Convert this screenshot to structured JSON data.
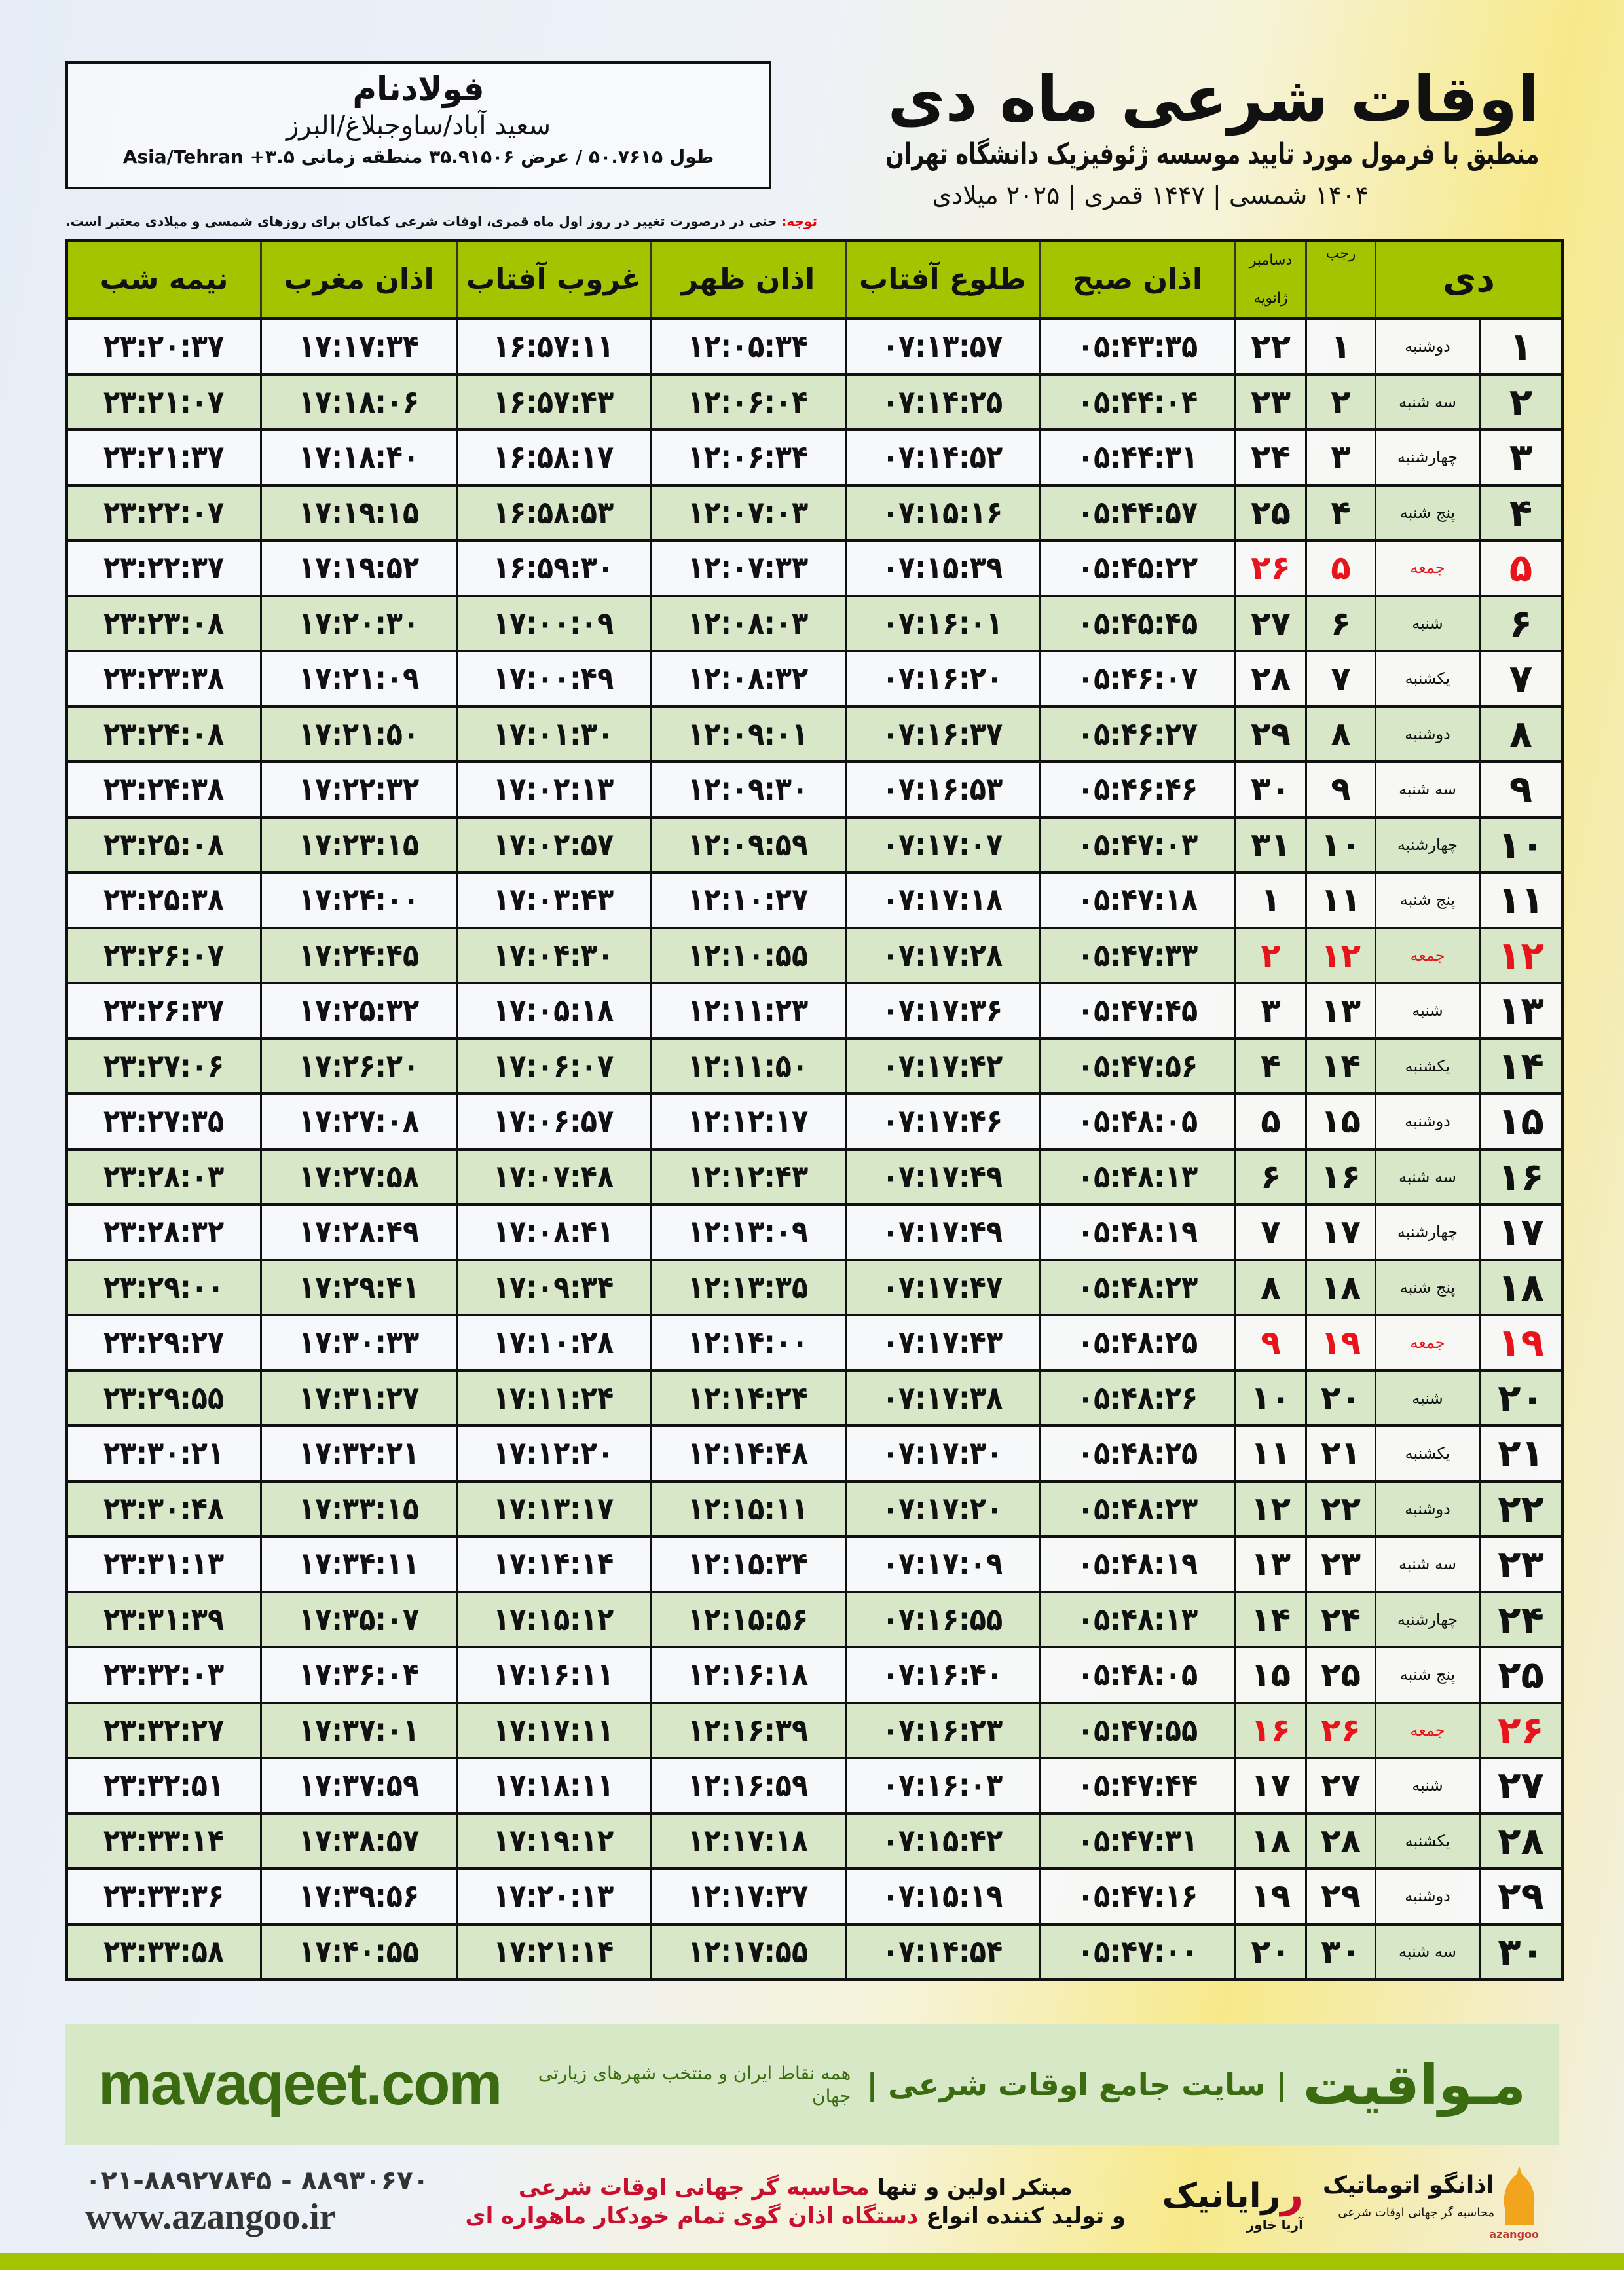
{
  "header": {
    "title": "اوقات شرعی ماه دی",
    "subtitle": "منطبق با فرمول مورد تایید موسسه ژئوفیزیک دانشگاه تهران",
    "dates": "۱۴۰۴ شمسی | ۱۴۴۷ قمری | ۲۰۲۵ میلادی"
  },
  "location": {
    "city": "فولادنام",
    "region": "سعید آباد/ساوجبلاغ/البرز",
    "coords": "طول ۵۰.۷۶۱۵ / عرض ۳۵.۹۱۵۰۶ منطقه زمانی ۳.۵+ Asia/Tehran"
  },
  "note": {
    "label": "توجه:",
    "text": " حتی در درصورت تغییر در روز اول ماه قمری، اوقات شرعی کماکان برای روزهای شمسی و میلادی معتبر است."
  },
  "colors": {
    "header_green": "#a4c400",
    "row_green": "#d7e7c7",
    "holiday_red": "#e8141b",
    "brand_green": "#3a6b10"
  },
  "table": {
    "columns": [
      "نیمه شب",
      "اذان مغرب",
      "غروب آفتاب",
      "اذان ظهر",
      "طلوع آفتاب",
      "اذان صبح",
      "دسامبر",
      "ژانویه",
      "رجب",
      "دی"
    ],
    "rows": [
      {
        "day": "۱",
        "weekday": "دوشنبه",
        "rajab": "۱",
        "greg": "۲۲",
        "fajr": "۰۵:۴۳:۳۵",
        "sunrise": "۰۷:۱۳:۵۷",
        "dhuhr": "۱۲:۰۵:۳۴",
        "sunset": "۱۶:۵۷:۱۱",
        "maghrib": "۱۷:۱۷:۳۴",
        "midnight": "۲۳:۲۰:۳۷",
        "holiday": false
      },
      {
        "day": "۲",
        "weekday": "سه شنبه",
        "rajab": "۲",
        "greg": "۲۳",
        "fajr": "۰۵:۴۴:۰۴",
        "sunrise": "۰۷:۱۴:۲۵",
        "dhuhr": "۱۲:۰۶:۰۴",
        "sunset": "۱۶:۵۷:۴۳",
        "maghrib": "۱۷:۱۸:۰۶",
        "midnight": "۲۳:۲۱:۰۷",
        "holiday": false
      },
      {
        "day": "۳",
        "weekday": "چهارشنبه",
        "rajab": "۳",
        "greg": "۲۴",
        "fajr": "۰۵:۴۴:۳۱",
        "sunrise": "۰۷:۱۴:۵۲",
        "dhuhr": "۱۲:۰۶:۳۴",
        "sunset": "۱۶:۵۸:۱۷",
        "maghrib": "۱۷:۱۸:۴۰",
        "midnight": "۲۳:۲۱:۳۷",
        "holiday": false
      },
      {
        "day": "۴",
        "weekday": "پنج شنبه",
        "rajab": "۴",
        "greg": "۲۵",
        "fajr": "۰۵:۴۴:۵۷",
        "sunrise": "۰۷:۱۵:۱۶",
        "dhuhr": "۱۲:۰۷:۰۳",
        "sunset": "۱۶:۵۸:۵۳",
        "maghrib": "۱۷:۱۹:۱۵",
        "midnight": "۲۳:۲۲:۰۷",
        "holiday": false
      },
      {
        "day": "۵",
        "weekday": "جمعه",
        "rajab": "۵",
        "greg": "۲۶",
        "fajr": "۰۵:۴۵:۲۲",
        "sunrise": "۰۷:۱۵:۳۹",
        "dhuhr": "۱۲:۰۷:۳۳",
        "sunset": "۱۶:۵۹:۳۰",
        "maghrib": "۱۷:۱۹:۵۲",
        "midnight": "۲۳:۲۲:۳۷",
        "holiday": true
      },
      {
        "day": "۶",
        "weekday": "شنبه",
        "rajab": "۶",
        "greg": "۲۷",
        "fajr": "۰۵:۴۵:۴۵",
        "sunrise": "۰۷:۱۶:۰۱",
        "dhuhr": "۱۲:۰۸:۰۳",
        "sunset": "۱۷:۰۰:۰۹",
        "maghrib": "۱۷:۲۰:۳۰",
        "midnight": "۲۳:۲۳:۰۸",
        "holiday": false
      },
      {
        "day": "۷",
        "weekday": "یکشنبه",
        "rajab": "۷",
        "greg": "۲۸",
        "fajr": "۰۵:۴۶:۰۷",
        "sunrise": "۰۷:۱۶:۲۰",
        "dhuhr": "۱۲:۰۸:۳۲",
        "sunset": "۱۷:۰۰:۴۹",
        "maghrib": "۱۷:۲۱:۰۹",
        "midnight": "۲۳:۲۳:۳۸",
        "holiday": false
      },
      {
        "day": "۸",
        "weekday": "دوشنبه",
        "rajab": "۸",
        "greg": "۲۹",
        "fajr": "۰۵:۴۶:۲۷",
        "sunrise": "۰۷:۱۶:۳۷",
        "dhuhr": "۱۲:۰۹:۰۱",
        "sunset": "۱۷:۰۱:۳۰",
        "maghrib": "۱۷:۲۱:۵۰",
        "midnight": "۲۳:۲۴:۰۸",
        "holiday": false
      },
      {
        "day": "۹",
        "weekday": "سه شنبه",
        "rajab": "۹",
        "greg": "۳۰",
        "fajr": "۰۵:۴۶:۴۶",
        "sunrise": "۰۷:۱۶:۵۳",
        "dhuhr": "۱۲:۰۹:۳۰",
        "sunset": "۱۷:۰۲:۱۳",
        "maghrib": "۱۷:۲۲:۳۲",
        "midnight": "۲۳:۲۴:۳۸",
        "holiday": false
      },
      {
        "day": "۱۰",
        "weekday": "چهارشنبه",
        "rajab": "۱۰",
        "greg": "۳۱",
        "fajr": "۰۵:۴۷:۰۳",
        "sunrise": "۰۷:۱۷:۰۷",
        "dhuhr": "۱۲:۰۹:۵۹",
        "sunset": "۱۷:۰۲:۵۷",
        "maghrib": "۱۷:۲۳:۱۵",
        "midnight": "۲۳:۲۵:۰۸",
        "holiday": false
      },
      {
        "day": "۱۱",
        "weekday": "پنج شنبه",
        "rajab": "۱۱",
        "greg": "۱",
        "fajr": "۰۵:۴۷:۱۸",
        "sunrise": "۰۷:۱۷:۱۸",
        "dhuhr": "۱۲:۱۰:۲۷",
        "sunset": "۱۷:۰۳:۴۳",
        "maghrib": "۱۷:۲۴:۰۰",
        "midnight": "۲۳:۲۵:۳۸",
        "holiday": false
      },
      {
        "day": "۱۲",
        "weekday": "جمعه",
        "rajab": "۱۲",
        "greg": "۲",
        "fajr": "۰۵:۴۷:۳۳",
        "sunrise": "۰۷:۱۷:۲۸",
        "dhuhr": "۱۲:۱۰:۵۵",
        "sunset": "۱۷:۰۴:۳۰",
        "maghrib": "۱۷:۲۴:۴۵",
        "midnight": "۲۳:۲۶:۰۷",
        "holiday": true
      },
      {
        "day": "۱۳",
        "weekday": "شنبه",
        "rajab": "۱۳",
        "greg": "۳",
        "fajr": "۰۵:۴۷:۴۵",
        "sunrise": "۰۷:۱۷:۳۶",
        "dhuhr": "۱۲:۱۱:۲۳",
        "sunset": "۱۷:۰۵:۱۸",
        "maghrib": "۱۷:۲۵:۳۲",
        "midnight": "۲۳:۲۶:۳۷",
        "holiday": false
      },
      {
        "day": "۱۴",
        "weekday": "یکشنبه",
        "rajab": "۱۴",
        "greg": "۴",
        "fajr": "۰۵:۴۷:۵۶",
        "sunrise": "۰۷:۱۷:۴۲",
        "dhuhr": "۱۲:۱۱:۵۰",
        "sunset": "۱۷:۰۶:۰۷",
        "maghrib": "۱۷:۲۶:۲۰",
        "midnight": "۲۳:۲۷:۰۶",
        "holiday": false
      },
      {
        "day": "۱۵",
        "weekday": "دوشنبه",
        "rajab": "۱۵",
        "greg": "۵",
        "fajr": "۰۵:۴۸:۰۵",
        "sunrise": "۰۷:۱۷:۴۶",
        "dhuhr": "۱۲:۱۲:۱۷",
        "sunset": "۱۷:۰۶:۵۷",
        "maghrib": "۱۷:۲۷:۰۸",
        "midnight": "۲۳:۲۷:۳۵",
        "holiday": false
      },
      {
        "day": "۱۶",
        "weekday": "سه شنبه",
        "rajab": "۱۶",
        "greg": "۶",
        "fajr": "۰۵:۴۸:۱۳",
        "sunrise": "۰۷:۱۷:۴۹",
        "dhuhr": "۱۲:۱۲:۴۳",
        "sunset": "۱۷:۰۷:۴۸",
        "maghrib": "۱۷:۲۷:۵۸",
        "midnight": "۲۳:۲۸:۰۳",
        "holiday": false
      },
      {
        "day": "۱۷",
        "weekday": "چهارشنبه",
        "rajab": "۱۷",
        "greg": "۷",
        "fajr": "۰۵:۴۸:۱۹",
        "sunrise": "۰۷:۱۷:۴۹",
        "dhuhr": "۱۲:۱۳:۰۹",
        "sunset": "۱۷:۰۸:۴۱",
        "maghrib": "۱۷:۲۸:۴۹",
        "midnight": "۲۳:۲۸:۳۲",
        "holiday": false
      },
      {
        "day": "۱۸",
        "weekday": "پنج شنبه",
        "rajab": "۱۸",
        "greg": "۸",
        "fajr": "۰۵:۴۸:۲۳",
        "sunrise": "۰۷:۱۷:۴۷",
        "dhuhr": "۱۲:۱۳:۳۵",
        "sunset": "۱۷:۰۹:۳۴",
        "maghrib": "۱۷:۲۹:۴۱",
        "midnight": "۲۳:۲۹:۰۰",
        "holiday": false
      },
      {
        "day": "۱۹",
        "weekday": "جمعه",
        "rajab": "۱۹",
        "greg": "۹",
        "fajr": "۰۵:۴۸:۲۵",
        "sunrise": "۰۷:۱۷:۴۳",
        "dhuhr": "۱۲:۱۴:۰۰",
        "sunset": "۱۷:۱۰:۲۸",
        "maghrib": "۱۷:۳۰:۳۳",
        "midnight": "۲۳:۲۹:۲۷",
        "holiday": true
      },
      {
        "day": "۲۰",
        "weekday": "شنبه",
        "rajab": "۲۰",
        "greg": "۱۰",
        "fajr": "۰۵:۴۸:۲۶",
        "sunrise": "۰۷:۱۷:۳۸",
        "dhuhr": "۱۲:۱۴:۲۴",
        "sunset": "۱۷:۱۱:۲۴",
        "maghrib": "۱۷:۳۱:۲۷",
        "midnight": "۲۳:۲۹:۵۵",
        "holiday": false
      },
      {
        "day": "۲۱",
        "weekday": "یکشنبه",
        "rajab": "۲۱",
        "greg": "۱۱",
        "fajr": "۰۵:۴۸:۲۵",
        "sunrise": "۰۷:۱۷:۳۰",
        "dhuhr": "۱۲:۱۴:۴۸",
        "sunset": "۱۷:۱۲:۲۰",
        "maghrib": "۱۷:۳۲:۲۱",
        "midnight": "۲۳:۳۰:۲۱",
        "holiday": false
      },
      {
        "day": "۲۲",
        "weekday": "دوشنبه",
        "rajab": "۲۲",
        "greg": "۱۲",
        "fajr": "۰۵:۴۸:۲۳",
        "sunrise": "۰۷:۱۷:۲۰",
        "dhuhr": "۱۲:۱۵:۱۱",
        "sunset": "۱۷:۱۳:۱۷",
        "maghrib": "۱۷:۳۳:۱۵",
        "midnight": "۲۳:۳۰:۴۸",
        "holiday": false
      },
      {
        "day": "۲۳",
        "weekday": "سه شنبه",
        "rajab": "۲۳",
        "greg": "۱۳",
        "fajr": "۰۵:۴۸:۱۹",
        "sunrise": "۰۷:۱۷:۰۹",
        "dhuhr": "۱۲:۱۵:۳۴",
        "sunset": "۱۷:۱۴:۱۴",
        "maghrib": "۱۷:۳۴:۱۱",
        "midnight": "۲۳:۳۱:۱۳",
        "holiday": false
      },
      {
        "day": "۲۴",
        "weekday": "چهارشنبه",
        "rajab": "۲۴",
        "greg": "۱۴",
        "fajr": "۰۵:۴۸:۱۳",
        "sunrise": "۰۷:۱۶:۵۵",
        "dhuhr": "۱۲:۱۵:۵۶",
        "sunset": "۱۷:۱۵:۱۲",
        "maghrib": "۱۷:۳۵:۰۷",
        "midnight": "۲۳:۳۱:۳۹",
        "holiday": false
      },
      {
        "day": "۲۵",
        "weekday": "پنج شنبه",
        "rajab": "۲۵",
        "greg": "۱۵",
        "fajr": "۰۵:۴۸:۰۵",
        "sunrise": "۰۷:۱۶:۴۰",
        "dhuhr": "۱۲:۱۶:۱۸",
        "sunset": "۱۷:۱۶:۱۱",
        "maghrib": "۱۷:۳۶:۰۴",
        "midnight": "۲۳:۳۲:۰۳",
        "holiday": false
      },
      {
        "day": "۲۶",
        "weekday": "جمعه",
        "rajab": "۲۶",
        "greg": "۱۶",
        "fajr": "۰۵:۴۷:۵۵",
        "sunrise": "۰۷:۱۶:۲۳",
        "dhuhr": "۱۲:۱۶:۳۹",
        "sunset": "۱۷:۱۷:۱۱",
        "maghrib": "۱۷:۳۷:۰۱",
        "midnight": "۲۳:۳۲:۲۷",
        "holiday": true
      },
      {
        "day": "۲۷",
        "weekday": "شنبه",
        "rajab": "۲۷",
        "greg": "۱۷",
        "fajr": "۰۵:۴۷:۴۴",
        "sunrise": "۰۷:۱۶:۰۳",
        "dhuhr": "۱۲:۱۶:۵۹",
        "sunset": "۱۷:۱۸:۱۱",
        "maghrib": "۱۷:۳۷:۵۹",
        "midnight": "۲۳:۳۲:۵۱",
        "holiday": false
      },
      {
        "day": "۲۸",
        "weekday": "یکشنبه",
        "rajab": "۲۸",
        "greg": "۱۸",
        "fajr": "۰۵:۴۷:۳۱",
        "sunrise": "۰۷:۱۵:۴۲",
        "dhuhr": "۱۲:۱۷:۱۸",
        "sunset": "۱۷:۱۹:۱۲",
        "maghrib": "۱۷:۳۸:۵۷",
        "midnight": "۲۳:۳۳:۱۴",
        "holiday": false
      },
      {
        "day": "۲۹",
        "weekday": "دوشنبه",
        "rajab": "۲۹",
        "greg": "۱۹",
        "fajr": "۰۵:۴۷:۱۶",
        "sunrise": "۰۷:۱۵:۱۹",
        "dhuhr": "۱۲:۱۷:۳۷",
        "sunset": "۱۷:۲۰:۱۳",
        "maghrib": "۱۷:۳۹:۵۶",
        "midnight": "۲۳:۳۳:۳۶",
        "holiday": false
      },
      {
        "day": "۳۰",
        "weekday": "سه شنبه",
        "rajab": "۳۰",
        "greg": "۲۰",
        "fajr": "۰۵:۴۷:۰۰",
        "sunrise": "۰۷:۱۴:۵۴",
        "dhuhr": "۱۲:۱۷:۵۵",
        "sunset": "۱۷:۲۱:۱۴",
        "maghrib": "۱۷:۴۰:۵۵",
        "midnight": "۲۳:۳۳:۵۸",
        "holiday": false
      }
    ]
  },
  "banner": {
    "site": "mavaqeet.com",
    "brand": "مـواقیت",
    "tagline": "| سایت جامع اوقات شرعی |",
    "tagsmall": "همه نقاط ایران و منتخب شهرهای زیارتی جهان"
  },
  "footer": {
    "phones": "۰۲۱-۸۸۹۲۷۸۴۵ - ۸۸۹۳۰۶۷۰",
    "www": "www.azangoo.ir",
    "promo1_a": "مبتکر اولین و تنها ",
    "promo1_b": "محاسبه گر جهانی اوقات شرعی",
    "promo2_a": "و تولید کننده انواع ",
    "promo2_b": "دستگاه اذان گوی تمام خودکار ماهواره ای",
    "raynik": "رایانیک",
    "raynik_sub": "آریا خاور",
    "azangoo_name": "اذانگو اتوماتیک",
    "azangoo_sub": "محاسبه گر جهانی اوقات شرعی",
    "azangoo_latin": "azangoo"
  }
}
